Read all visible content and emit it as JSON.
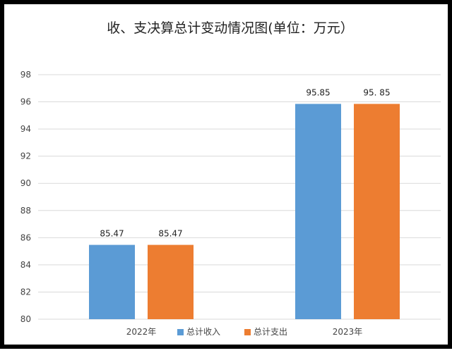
{
  "chart_data": {
    "type": "bar",
    "title": "收、支决算总计变动情况图(单位：万元）",
    "categories": [
      "2022年",
      "2023年"
    ],
    "series": [
      {
        "name": "总计收入",
        "values": [
          85.47,
          95.85
        ],
        "labels": [
          "85.47",
          "95.85"
        ],
        "color": "#5B9BD5"
      },
      {
        "name": "总计支出",
        "values": [
          85.47,
          95.85
        ],
        "labels": [
          "85.47",
          "95. 85"
        ],
        "color": "#ED7D31"
      }
    ],
    "ylim": [
      80,
      98
    ],
    "ytick_step": 2,
    "yticks": [
      "80",
      "82",
      "84",
      "86",
      "88",
      "90",
      "92",
      "94",
      "96",
      "98"
    ],
    "grid": true,
    "legend_position": "bottom"
  }
}
